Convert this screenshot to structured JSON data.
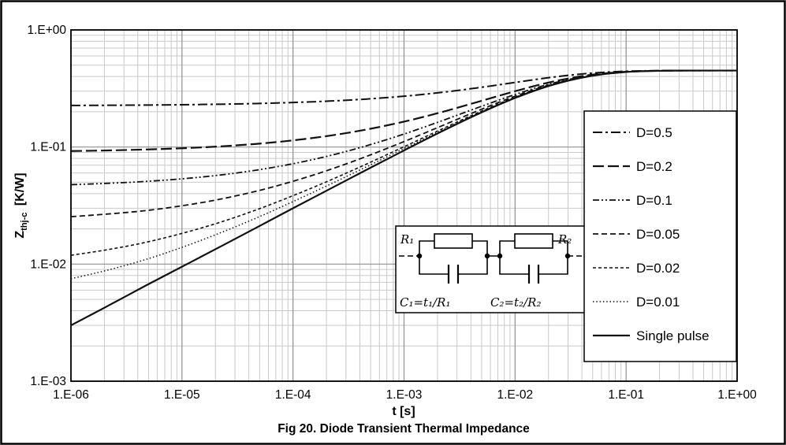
{
  "figure": {
    "caption": "Fig 20. Diode Transient Thermal Impedance"
  },
  "axes": {
    "x_title": "t  [s]",
    "y_label": {
      "base": "Z",
      "sub": "thj-c",
      "rest": " [K/W]"
    },
    "x_ticks": [
      "1.E-06",
      "1.E-05",
      "1.E-04",
      "1.E-03",
      "1.E-02",
      "1.E-01",
      "1.E+00"
    ],
    "y_ticks": [
      "1.E+00",
      "1.E-01",
      "1.E-02",
      "1.E-03"
    ]
  },
  "inset": {
    "r1": "R₁",
    "r2": "R₂",
    "c1": "C₁=t₁/R₁",
    "c2": "C₂=t₂/R₂"
  },
  "colors": {
    "curve": "#111111",
    "grid_minor": "#c9c9c9",
    "grid_major": "#8f8f8f",
    "plot_border": "#000000",
    "background": "#ffffff"
  },
  "chart_data": {
    "type": "line",
    "title": "Fig 20. Diode Transient Thermal Impedance",
    "xlabel": "t [s]",
    "ylabel": "Zthj-c [K/W]",
    "x_scale": "log",
    "y_scale": "log",
    "xlim": [
      1e-06,
      1
    ],
    "ylim": [
      0.001,
      1
    ],
    "grid": {
      "major": true,
      "minor": true
    },
    "legend_position": "inside-right",
    "steady_state_KW": 0.45,
    "x": [
      1e-06,
      2.154e-06,
      4.642e-06,
      1e-05,
      2.154e-05,
      4.642e-05,
      0.0001,
      0.0002154,
      0.0004642,
      0.001,
      0.002154,
      0.004642,
      0.01,
      0.02154,
      0.04642,
      0.1,
      0.2154,
      0.4642,
      1
    ],
    "series": [
      {
        "name": "D=0.5",
        "duty": 0.5,
        "dash": "12 4 3 4",
        "width": 2.0,
        "values": [
          0.2265,
          0.2272,
          0.2282,
          0.2297,
          0.232,
          0.2352,
          0.24,
          0.2469,
          0.2571,
          0.2717,
          0.2925,
          0.3207,
          0.3561,
          0.3943,
          0.4259,
          0.4435,
          0.4491,
          0.4499,
          0.45
        ]
      },
      {
        "name": "D=0.2",
        "duty": 0.2,
        "dash": "14 5",
        "width": 2.2,
        "values": [
          0.0924,
          0.0935,
          0.0952,
          0.0976,
          0.1011,
          0.1063,
          0.114,
          0.1251,
          0.1414,
          0.1648,
          0.198,
          0.2431,
          0.2998,
          0.3609,
          0.4115,
          0.4395,
          0.4485,
          0.4499,
          0.45
        ]
      },
      {
        "name": "D=0.1",
        "duty": 0.1,
        "dash": "8 3 2 3 2 3",
        "width": 1.8,
        "values": [
          0.0477,
          0.049,
          0.0508,
          0.0535,
          0.0575,
          0.0634,
          0.072,
          0.0845,
          0.1028,
          0.1291,
          0.1665,
          0.2173,
          0.281,
          0.3497,
          0.4067,
          0.4382,
          0.4483,
          0.4499,
          0.45
        ]
      },
      {
        "name": "D=0.05",
        "duty": 0.05,
        "dash": "7 4",
        "width": 1.8,
        "values": [
          0.0254,
          0.0268,
          0.0286,
          0.0315,
          0.0357,
          0.0419,
          0.051,
          0.0642,
          0.0835,
          0.1113,
          0.1507,
          0.2044,
          0.2716,
          0.3441,
          0.4042,
          0.4376,
          0.4482,
          0.4499,
          0.45
        ]
      },
      {
        "name": "D=0.02",
        "duty": 0.02,
        "dash": "4 3",
        "width": 1.6,
        "values": [
          0.0119,
          0.0133,
          0.0153,
          0.0183,
          0.0226,
          0.029,
          0.0384,
          0.052,
          0.0719,
          0.1006,
          0.1413,
          0.1966,
          0.266,
          0.3408,
          0.4028,
          0.4372,
          0.4482,
          0.4499,
          0.45
        ]
      },
      {
        "name": "D=0.01",
        "duty": 0.01,
        "dash": "1.5 2.8",
        "width": 1.5,
        "values": [
          0.0075,
          0.0089,
          0.0109,
          0.0139,
          0.0183,
          0.0247,
          0.0342,
          0.048,
          0.0681,
          0.0971,
          0.1381,
          0.194,
          0.2641,
          0.3397,
          0.4023,
          0.4371,
          0.4482,
          0.4499,
          0.45
        ]
      },
      {
        "name": "Single pulse",
        "duty": null,
        "dash": "",
        "width": 2.2,
        "values": [
          0.003,
          0.0044,
          0.0065,
          0.0095,
          0.0139,
          0.0204,
          0.03,
          0.0439,
          0.0642,
          0.0935,
          0.135,
          0.1914,
          0.2623,
          0.3386,
          0.4018,
          0.4369,
          0.4482,
          0.4499,
          0.45
        ]
      }
    ]
  }
}
